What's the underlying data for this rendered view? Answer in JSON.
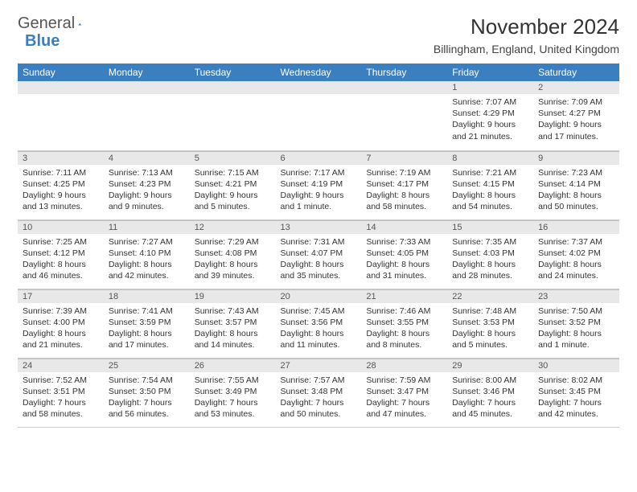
{
  "logo": {
    "text1": "General",
    "text2": "Blue",
    "triangle_color": "#3a7fbf"
  },
  "title": "November 2024",
  "location": "Billingham, England, United Kingdom",
  "header_bg": "#3a7fbf",
  "daynum_bg": "#e8e8e8",
  "columns": [
    "Sunday",
    "Monday",
    "Tuesday",
    "Wednesday",
    "Thursday",
    "Friday",
    "Saturday"
  ],
  "rows": [
    [
      null,
      null,
      null,
      null,
      null,
      {
        "n": "1",
        "sr": "7:07 AM",
        "ss": "4:29 PM",
        "dl": "9 hours and 21 minutes."
      },
      {
        "n": "2",
        "sr": "7:09 AM",
        "ss": "4:27 PM",
        "dl": "9 hours and 17 minutes."
      }
    ],
    [
      {
        "n": "3",
        "sr": "7:11 AM",
        "ss": "4:25 PM",
        "dl": "9 hours and 13 minutes."
      },
      {
        "n": "4",
        "sr": "7:13 AM",
        "ss": "4:23 PM",
        "dl": "9 hours and 9 minutes."
      },
      {
        "n": "5",
        "sr": "7:15 AM",
        "ss": "4:21 PM",
        "dl": "9 hours and 5 minutes."
      },
      {
        "n": "6",
        "sr": "7:17 AM",
        "ss": "4:19 PM",
        "dl": "9 hours and 1 minute."
      },
      {
        "n": "7",
        "sr": "7:19 AM",
        "ss": "4:17 PM",
        "dl": "8 hours and 58 minutes."
      },
      {
        "n": "8",
        "sr": "7:21 AM",
        "ss": "4:15 PM",
        "dl": "8 hours and 54 minutes."
      },
      {
        "n": "9",
        "sr": "7:23 AM",
        "ss": "4:14 PM",
        "dl": "8 hours and 50 minutes."
      }
    ],
    [
      {
        "n": "10",
        "sr": "7:25 AM",
        "ss": "4:12 PM",
        "dl": "8 hours and 46 minutes."
      },
      {
        "n": "11",
        "sr": "7:27 AM",
        "ss": "4:10 PM",
        "dl": "8 hours and 42 minutes."
      },
      {
        "n": "12",
        "sr": "7:29 AM",
        "ss": "4:08 PM",
        "dl": "8 hours and 39 minutes."
      },
      {
        "n": "13",
        "sr": "7:31 AM",
        "ss": "4:07 PM",
        "dl": "8 hours and 35 minutes."
      },
      {
        "n": "14",
        "sr": "7:33 AM",
        "ss": "4:05 PM",
        "dl": "8 hours and 31 minutes."
      },
      {
        "n": "15",
        "sr": "7:35 AM",
        "ss": "4:03 PM",
        "dl": "8 hours and 28 minutes."
      },
      {
        "n": "16",
        "sr": "7:37 AM",
        "ss": "4:02 PM",
        "dl": "8 hours and 24 minutes."
      }
    ],
    [
      {
        "n": "17",
        "sr": "7:39 AM",
        "ss": "4:00 PM",
        "dl": "8 hours and 21 minutes."
      },
      {
        "n": "18",
        "sr": "7:41 AM",
        "ss": "3:59 PM",
        "dl": "8 hours and 17 minutes."
      },
      {
        "n": "19",
        "sr": "7:43 AM",
        "ss": "3:57 PM",
        "dl": "8 hours and 14 minutes."
      },
      {
        "n": "20",
        "sr": "7:45 AM",
        "ss": "3:56 PM",
        "dl": "8 hours and 11 minutes."
      },
      {
        "n": "21",
        "sr": "7:46 AM",
        "ss": "3:55 PM",
        "dl": "8 hours and 8 minutes."
      },
      {
        "n": "22",
        "sr": "7:48 AM",
        "ss": "3:53 PM",
        "dl": "8 hours and 5 minutes."
      },
      {
        "n": "23",
        "sr": "7:50 AM",
        "ss": "3:52 PM",
        "dl": "8 hours and 1 minute."
      }
    ],
    [
      {
        "n": "24",
        "sr": "7:52 AM",
        "ss": "3:51 PM",
        "dl": "7 hours and 58 minutes."
      },
      {
        "n": "25",
        "sr": "7:54 AM",
        "ss": "3:50 PM",
        "dl": "7 hours and 56 minutes."
      },
      {
        "n": "26",
        "sr": "7:55 AM",
        "ss": "3:49 PM",
        "dl": "7 hours and 53 minutes."
      },
      {
        "n": "27",
        "sr": "7:57 AM",
        "ss": "3:48 PM",
        "dl": "7 hours and 50 minutes."
      },
      {
        "n": "28",
        "sr": "7:59 AM",
        "ss": "3:47 PM",
        "dl": "7 hours and 47 minutes."
      },
      {
        "n": "29",
        "sr": "8:00 AM",
        "ss": "3:46 PM",
        "dl": "7 hours and 45 minutes."
      },
      {
        "n": "30",
        "sr": "8:02 AM",
        "ss": "3:45 PM",
        "dl": "7 hours and 42 minutes."
      }
    ]
  ],
  "labels": {
    "sunrise": "Sunrise:",
    "sunset": "Sunset:",
    "daylight": "Daylight:"
  }
}
